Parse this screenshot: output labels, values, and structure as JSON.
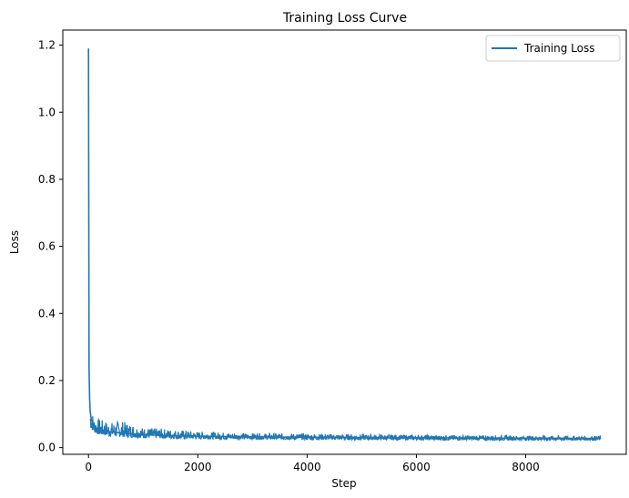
{
  "chart_data": {
    "type": "line",
    "title": "Training Loss Curve",
    "xlabel": "Step",
    "ylabel": "Loss",
    "xlim": [
      -470,
      9840
    ],
    "ylim": [
      -0.02,
      1.245
    ],
    "xticks": [
      0,
      2000,
      4000,
      6000,
      8000
    ],
    "xtick_labels": [
      "0",
      "2000",
      "4000",
      "6000",
      "8000"
    ],
    "yticks": [
      0.0,
      0.2,
      0.4,
      0.6,
      0.8,
      1.0,
      1.2
    ],
    "ytick_labels": [
      "0.0",
      "0.2",
      "0.4",
      "0.6",
      "0.8",
      "1.0",
      "1.2"
    ],
    "grid": false,
    "legend_position": "upper right",
    "series": [
      {
        "name": "Training Loss",
        "color": "#1f77b4",
        "x": [
          0,
          10,
          20,
          30,
          50,
          75,
          100,
          150,
          200,
          300,
          400,
          500,
          600,
          800,
          1000,
          1200,
          1500,
          2000,
          2500,
          3000,
          3500,
          4000,
          4500,
          5000,
          5500,
          6000,
          6500,
          7000,
          7500,
          8000,
          8500,
          9000,
          9370
        ],
        "y": [
          1.19,
          0.24,
          0.15,
          0.11,
          0.085,
          0.072,
          0.065,
          0.058,
          0.054,
          0.05,
          0.047,
          0.045,
          0.044,
          0.041,
          0.039,
          0.037,
          0.036,
          0.034,
          0.033,
          0.032,
          0.031,
          0.031,
          0.03,
          0.03,
          0.029,
          0.029,
          0.029,
          0.028,
          0.028,
          0.028,
          0.028,
          0.027,
          0.027
        ],
        "noise_band": {
          "x": [
            30,
            100,
            200,
            400,
            600,
            1000,
            1500,
            2000,
            3000,
            4000,
            6000,
            8000,
            9370
          ],
          "low": [
            0.06,
            0.045,
            0.038,
            0.034,
            0.032,
            0.029,
            0.027,
            0.026,
            0.025,
            0.024,
            0.023,
            0.022,
            0.022
          ],
          "high": [
            0.13,
            0.09,
            0.085,
            0.075,
            0.08,
            0.06,
            0.055,
            0.048,
            0.043,
            0.042,
            0.038,
            0.036,
            0.035
          ]
        }
      }
    ]
  }
}
